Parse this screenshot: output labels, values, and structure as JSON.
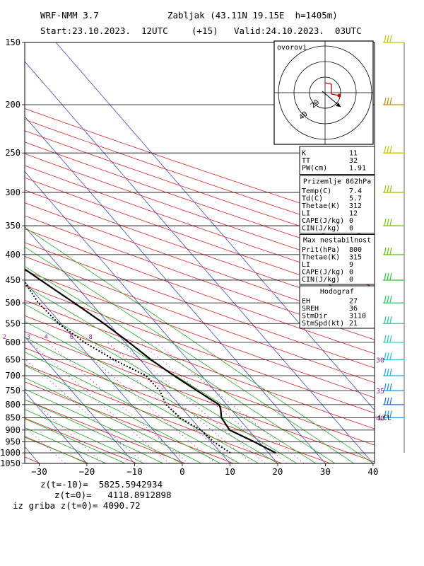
{
  "header": {
    "model": "WRF-NMM 3.7",
    "station": "Zabljak (43.11N 19.15E  h=1405m)",
    "start": "Start:23.10.2023.  12UTC",
    "lead": "(+15)",
    "valid": "Valid:24.10.2023.  03UTC"
  },
  "chart_data": {
    "type": "line",
    "title": "",
    "xlabel": "",
    "ylabel": "",
    "xlim": [
      -30,
      40
    ],
    "ylim": [
      1050,
      150
    ],
    "y_scale": "log",
    "x_ticks": [
      -30,
      -20,
      -10,
      0,
      10,
      20,
      30,
      40
    ],
    "y_ticks": [
      150,
      200,
      250,
      300,
      350,
      400,
      450,
      500,
      550,
      600,
      650,
      700,
      750,
      800,
      850,
      900,
      950,
      1000,
      1050
    ],
    "mixing_ratio_labels": [
      "0.5",
      "1",
      "2",
      "3",
      "4",
      "6",
      "8"
    ],
    "series": [
      {
        "name": "",
        "style": "solid",
        "color": "#000000",
        "points": [
          [
            21.5,
            1000
          ],
          [
            19,
            950
          ],
          [
            16,
            900
          ],
          [
            16.5,
            850
          ],
          [
            18,
            815
          ],
          [
            18.4,
            800
          ],
          [
            16.3,
            750
          ],
          [
            14.2,
            700
          ],
          [
            12.3,
            650
          ],
          [
            10.8,
            600
          ],
          [
            9,
            550
          ],
          [
            6.5,
            500
          ],
          [
            3.6,
            450
          ],
          [
            0.5,
            400
          ],
          [
            -2.5,
            350
          ],
          [
            -5.5,
            300
          ],
          [
            -7.5,
            250
          ],
          [
            -10.5,
            200
          ],
          [
            -10,
            175
          ],
          [
            -7.5,
            150
          ]
        ]
      },
      {
        "name": "",
        "style": "dotted",
        "color": "#000000",
        "points": [
          [
            12,
            1000
          ],
          [
            10.5,
            950
          ],
          [
            10,
            900
          ],
          [
            7.8,
            850
          ],
          [
            7.3,
            800
          ],
          [
            8.5,
            750
          ],
          [
            8.3,
            700
          ],
          [
            4.5,
            650
          ],
          [
            1.5,
            600
          ],
          [
            -0.5,
            550
          ],
          [
            -1,
            500
          ],
          [
            0,
            450
          ],
          [
            1.8,
            400
          ],
          [
            2.5,
            350
          ],
          [
            1,
            300
          ],
          [
            -0.5,
            250
          ],
          [
            -11.5,
            200
          ],
          [
            -10.5,
            175
          ],
          [
            -5.5,
            150
          ]
        ]
      }
    ],
    "wind_barbs": [
      {
        "pressure": 150,
        "label": "",
        "color": "#c8c800"
      },
      {
        "pressure": 200,
        "label": "",
        "color": "#d09000"
      },
      {
        "pressure": 250,
        "label": "",
        "color": "#c8c800"
      },
      {
        "pressure": 300,
        "label": "",
        "color": "#a0c800"
      },
      {
        "pressure": 350,
        "label": "",
        "color": "#80d000"
      },
      {
        "pressure": 400,
        "label": "",
        "color": "#60d000"
      },
      {
        "pressure": 450,
        "label": "",
        "color": "#30d030"
      },
      {
        "pressure": 500,
        "label": "",
        "color": "#20d060"
      },
      {
        "pressure": 550,
        "label": "",
        "color": "#20d090"
      },
      {
        "pressure": 600,
        "label": "",
        "color": "#20d0c0"
      },
      {
        "pressure": 650,
        "label": "30",
        "color": "#20c8e0"
      },
      {
        "pressure": 700,
        "label": "",
        "color": "#20b0f0"
      },
      {
        "pressure": 750,
        "label": "35",
        "color": "#2090f0"
      },
      {
        "pressure": 800,
        "label": "",
        "color": "#2070f0"
      },
      {
        "pressure": 850,
        "label": "40",
        "color": "#20a0f0"
      }
    ],
    "lcl": {
      "pressure": 848,
      "label": "LCL"
    },
    "hodograph": {
      "label": "ovorovi",
      "ring_labels": [
        "20",
        "40"
      ]
    }
  },
  "panels": {
    "indices": [
      {
        "key": "K",
        "value": "11"
      },
      {
        "key": "TT",
        "value": "32"
      },
      {
        "key": "PW(cm)",
        "value": "1.91"
      }
    ],
    "surface": {
      "title": "Prizemlje 862hPa",
      "rows": [
        {
          "key": "Temp(C)",
          "value": "7.4"
        },
        {
          "key": "Td(C)",
          "value": "5.7"
        },
        {
          "key": "Thetae(K)",
          "value": "312"
        },
        {
          "key": "LI",
          "value": "12"
        },
        {
          "key": "CAPE(J/kg)",
          "value": "0"
        },
        {
          "key": "CIN(J/kg)",
          "value": "0"
        }
      ]
    },
    "unstable": {
      "title": "Max nestabilnost",
      "rows": [
        {
          "key": "Prit(hPa)",
          "value": "800"
        },
        {
          "key": "Thetae(K)",
          "value": "315"
        },
        {
          "key": "LI",
          "value": "9"
        },
        {
          "key": "CAPE(J/kg)",
          "value": "0"
        },
        {
          "key": "CIN(J/kg)",
          "value": "0"
        }
      ]
    },
    "hodograf": {
      "title": "Hodograf",
      "rows": [
        {
          "key": "EH",
          "value": "27"
        },
        {
          "key": "SREH",
          "value": "36"
        },
        {
          "key": "StmDir",
          "value": "3110"
        },
        {
          "key": "StmSpd(kt)",
          "value": "21"
        }
      ]
    }
  },
  "footer": {
    "line1": "z(t=-10)=  5825.5942934",
    "line2": "z(t=0)=   4118.8912898",
    "line3": "iz griba z(t=0)= 4090.72"
  }
}
